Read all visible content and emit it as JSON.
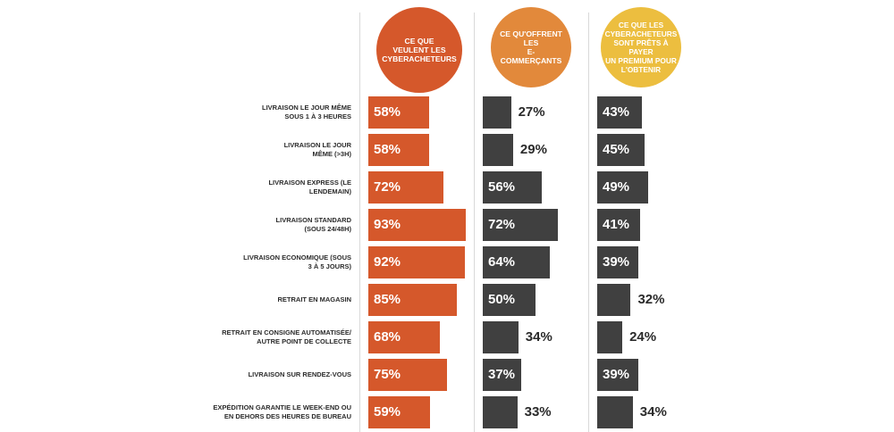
{
  "colors": {
    "col1": "#d5582b",
    "col2": "#e2893b",
    "col3": "#ecbe3f",
    "dark": "#404040",
    "text": "#2b2b2b"
  },
  "headers": [
    "CE QUE\nVEULENT LES\nCYBERACHETEURS",
    "CE QU'OFFRENT\nLES\nE-COMMERÇANTS",
    "CE QUE LES\nCYBERACHETEURS\nSONT PRÊTS À PAYER\nUN PREMIUM POUR\nL'OBTENIR"
  ],
  "chart_data": {
    "type": "bar",
    "categories": [
      "LIVRAISON LE JOUR MÊME\nSOUS 1 À 3 HEURES",
      "LIVRAISON LE JOUR\nMÊME (>3H)",
      "LIVRAISON EXPRESS (LE\nLENDEMAIN)",
      "LIVRAISON STANDARD\n(SOUS 24/48H)",
      "LIVRAISON ECONOMIQUE (SOUS\n3 À 5 JOURS)",
      "RETRAIT EN MAGASIN",
      "RETRAIT EN CONSIGNE AUTOMATISÉE/\nAUTRE POINT DE COLLECTE",
      "LIVRAISON SUR RENDEZ-VOUS",
      "EXPÉDITION GARANTIE LE WEEK-END OU\nEN DEHORS DES HEURES DE BUREAU"
    ],
    "series": [
      {
        "name": "CE QUE VEULENT LES CYBERACHETEURS",
        "values": [
          58,
          58,
          72,
          93,
          92,
          85,
          68,
          75,
          59
        ]
      },
      {
        "name": "CE QU'OFFRENT LES E-COMMERÇANTS",
        "values": [
          27,
          29,
          56,
          72,
          64,
          50,
          34,
          37,
          33
        ]
      },
      {
        "name": "CE QUE LES CYBERACHETEURS SONT PRÊTS À PAYER UN PREMIUM POUR L'OBTENIR",
        "values": [
          43,
          45,
          49,
          41,
          39,
          32,
          24,
          39,
          34
        ]
      }
    ],
    "value_suffix": "%",
    "grid": false
  }
}
